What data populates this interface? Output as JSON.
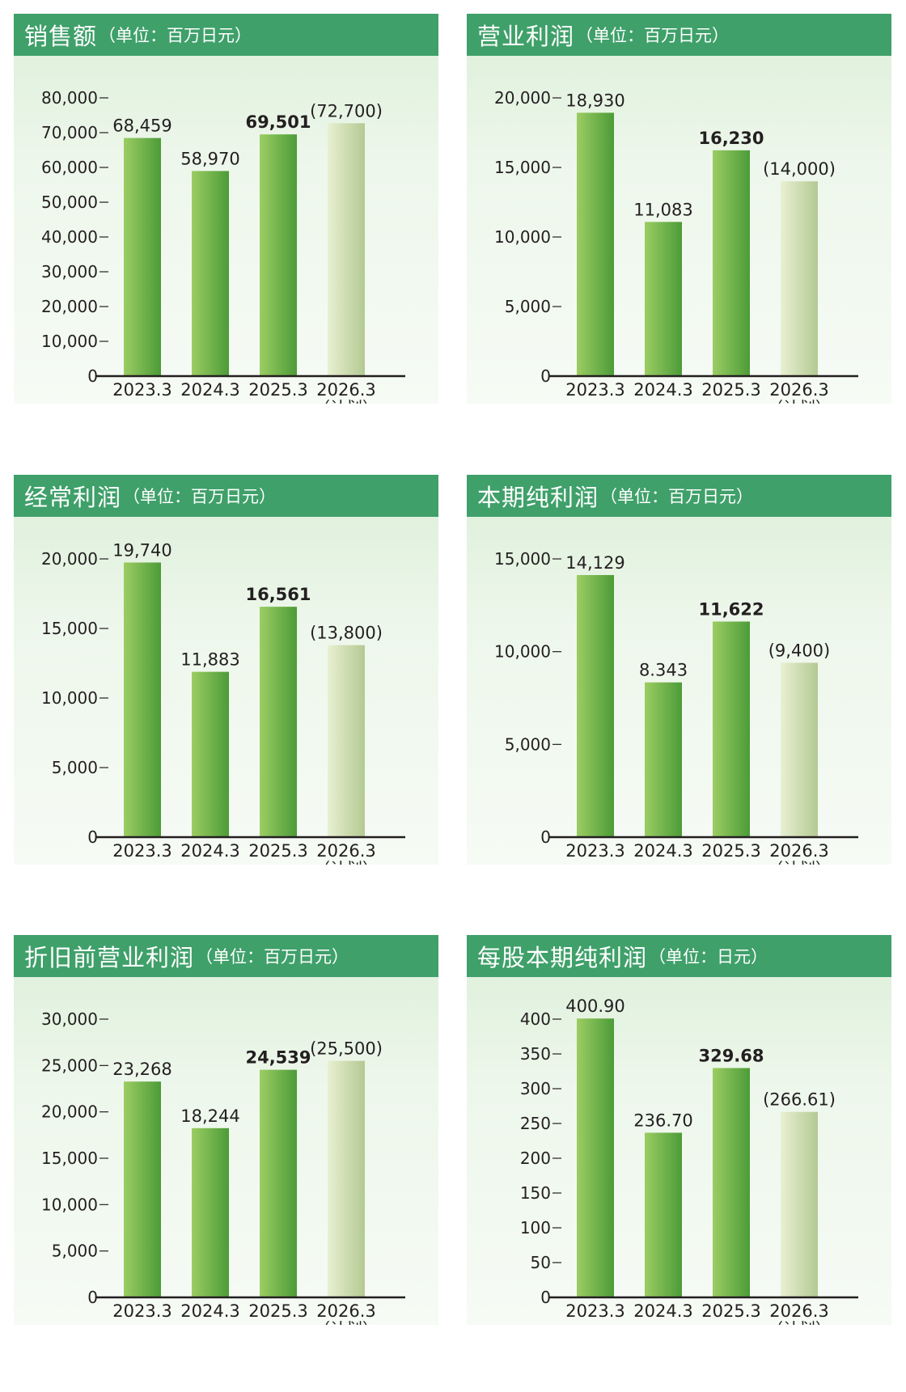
{
  "chart_data": [
    {
      "type": "bar",
      "title": "销售额",
      "unit": "（单位：百万日元）",
      "categories": [
        "2023.3",
        "2024.3",
        "2025.3",
        "2026.3"
      ],
      "category_subs": [
        "",
        "",
        "",
        "（计划）"
      ],
      "values": [
        68459,
        58970,
        69501,
        72700
      ],
      "value_labels": [
        "68,459",
        "58,970",
        "69,501",
        "(72,700)"
      ],
      "bold_index": 2,
      "plan_index": 3,
      "ylim": [
        0,
        80000
      ],
      "yticks": [
        0,
        10000,
        20000,
        30000,
        40000,
        50000,
        60000,
        70000,
        80000
      ],
      "ytick_labels": [
        "0",
        "10,000",
        "20,000",
        "30,000",
        "40,000",
        "50,000",
        "60,000",
        "70,000",
        "80,000"
      ]
    },
    {
      "type": "bar",
      "title": "营业利润",
      "unit": "（单位：百万日元）",
      "categories": [
        "2023.3",
        "2024.3",
        "2025.3",
        "2026.3"
      ],
      "category_subs": [
        "",
        "",
        "",
        "（计划）"
      ],
      "values": [
        18930,
        11083,
        16230,
        14000
      ],
      "value_labels": [
        "18,930",
        "11,083",
        "16,230",
        "(14,000)"
      ],
      "bold_index": 2,
      "plan_index": 3,
      "ylim": [
        0,
        20000
      ],
      "yticks": [
        0,
        5000,
        10000,
        15000,
        20000
      ],
      "ytick_labels": [
        "0",
        "5,000",
        "10,000",
        "15,000",
        "20,000"
      ]
    },
    {
      "type": "bar",
      "title": "经常利润",
      "unit": "（单位：百万日元）",
      "categories": [
        "2023.3",
        "2024.3",
        "2025.3",
        "2026.3"
      ],
      "category_subs": [
        "",
        "",
        "",
        "（计划）"
      ],
      "values": [
        19740,
        11883,
        16561,
        13800
      ],
      "value_labels": [
        "19,740",
        "11,883",
        "16,561",
        "(13,800)"
      ],
      "bold_index": 2,
      "plan_index": 3,
      "ylim": [
        0,
        20000
      ],
      "yticks": [
        0,
        5000,
        10000,
        15000,
        20000
      ],
      "ytick_labels": [
        "0",
        "5,000",
        "10,000",
        "15,000",
        "20,000"
      ]
    },
    {
      "type": "bar",
      "title": "本期纯利润",
      "unit": "（单位：百万日元）",
      "categories": [
        "2023.3",
        "2024.3",
        "2025.3",
        "2026.3"
      ],
      "category_subs": [
        "",
        "",
        "",
        "（计划）"
      ],
      "values": [
        14129,
        8343,
        11622,
        9400
      ],
      "value_labels": [
        "14,129",
        "8.343",
        "11,622",
        "(9,400)"
      ],
      "bold_index": 2,
      "plan_index": 3,
      "ylim": [
        0,
        15000
      ],
      "yticks": [
        0,
        5000,
        10000,
        15000
      ],
      "ytick_labels": [
        "0",
        "5,000",
        "10,000",
        "15,000"
      ]
    },
    {
      "type": "bar",
      "title": "折旧前营业利润",
      "unit": "（单位：百万日元）",
      "categories": [
        "2023.3",
        "2024.3",
        "2025.3",
        "2026.3"
      ],
      "category_subs": [
        "",
        "",
        "",
        "（计划）"
      ],
      "values": [
        23268,
        18244,
        24539,
        25500
      ],
      "value_labels": [
        "23,268",
        "18,244",
        "24,539",
        "(25,500)"
      ],
      "bold_index": 2,
      "plan_index": 3,
      "ylim": [
        0,
        30000
      ],
      "yticks": [
        0,
        5000,
        10000,
        15000,
        20000,
        25000,
        30000
      ],
      "ytick_labels": [
        "0",
        "5,000",
        "10,000",
        "15,000",
        "20,000",
        "25,000",
        "30,000"
      ]
    },
    {
      "type": "bar",
      "title": "每股本期纯利润",
      "unit": "（单位：日元）",
      "categories": [
        "2023.3",
        "2024.3",
        "2025.3",
        "2026.3"
      ],
      "category_subs": [
        "",
        "",
        "",
        "（计划）"
      ],
      "values": [
        400.9,
        236.7,
        329.68,
        266.61
      ],
      "value_labels": [
        "400.90",
        "236.70",
        "329.68",
        "(266.61)"
      ],
      "bold_index": 2,
      "plan_index": 3,
      "ylim": [
        0,
        400
      ],
      "yticks": [
        0,
        50,
        100,
        150,
        200,
        250,
        300,
        350,
        400
      ],
      "ytick_labels": [
        "0",
        "50",
        "100",
        "150",
        "200",
        "250",
        "300",
        "350",
        "400"
      ]
    }
  ],
  "colors": {
    "header": "#3fa06a",
    "bar_actual_light": "#9ccd63",
    "bar_actual_dark": "#4c9b38",
    "bar_plan_light": "#e8f0d2",
    "bar_plan_dark": "#b4c992",
    "axis": "#231f20"
  }
}
